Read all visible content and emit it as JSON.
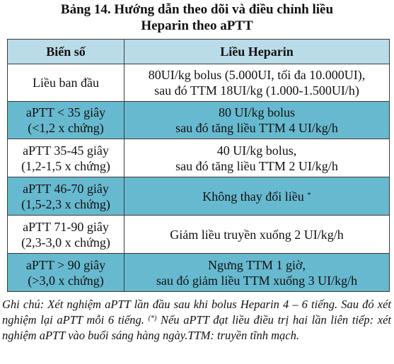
{
  "title": {
    "line1": "Bảng 14. Hướng dẫn theo dõi và điều chỉnh liều",
    "line2": "Heparin theo aPTT"
  },
  "table": {
    "headers": [
      "Biến số",
      "Liều Heparin"
    ],
    "rows": [
      {
        "variable": [
          "Liều ban đầu"
        ],
        "dose": [
          "80UI/kg bolus (5.000UI, tối đa 10.000UI),",
          "sau đó TTM 18UI/kg (1.000-1.500UI/h)"
        ],
        "dose_sup": ""
      },
      {
        "variable": [
          "aPTT < 35 giây",
          "(<1,2 x chứng)"
        ],
        "dose": [
          "80 UI/kg bolus",
          "sau đó tăng liều TTM 4 UI/kg/h"
        ],
        "dose_sup": ""
      },
      {
        "variable": [
          "aPTT 35-45 giây",
          "(1,2-1,5 x chứng)"
        ],
        "dose": [
          "40 UI/kg bolus,",
          "sau đó tăng liều TTM 2 UI/kg/h"
        ],
        "dose_sup": ""
      },
      {
        "variable": [
          "aPTT 46-70 giây",
          "(1,5-2,3 x chứng)"
        ],
        "dose": [
          "Không thay đổi liều"
        ],
        "dose_sup": "*"
      },
      {
        "variable": [
          "aPTT 71-90 giây",
          "(2,3-3,0 x chứng)"
        ],
        "dose": [
          "Giảm liều truyền xuống 2 UI/kg/h"
        ],
        "dose_sup": ""
      },
      {
        "variable": [
          "aPTT > 90 giây",
          "(>3,0 x chứng)"
        ],
        "dose": [
          "Ngưng TTM 1 giờ,",
          "sau đó giảm liều TTM xuống 3 UI/kg/h"
        ],
        "dose_sup": ""
      }
    ]
  },
  "note": {
    "part1": "Ghi chú: Xét nghiệm aPTT lần đầu sau khi bolus Heparin 4 – 6 tiếng. Sau đó xét nghiệm lại aPTT mỗi 6 tiếng. ",
    "sup": "(*)",
    "part2": " Nếu aPTT đạt liều điều trị hai lần liên tiếp: xét nghiệm aPTT vào buổi sáng hàng ngày.TTM: truyền tĩnh mạch."
  }
}
